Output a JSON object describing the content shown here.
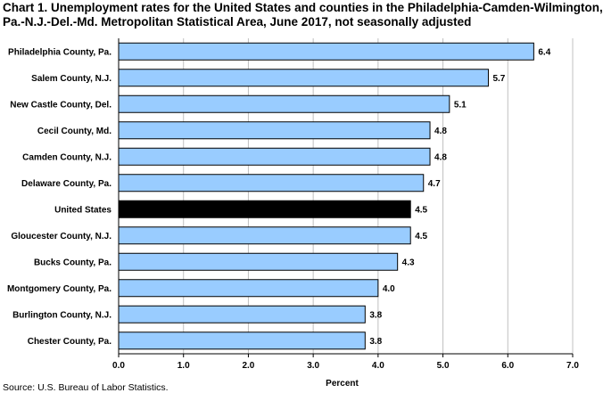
{
  "title_line1": "Chart 1. Unemployment rates for the United States and counties in the Philadelphia-Camden-Wilmington,",
  "title_line2": "Pa.-N.J.-Del.-Md. Metropolitan Statistical Area, June 2017, not seasonally adjusted",
  "source": "Source: U.S. Bureau of Labor Statistics.",
  "colors": {
    "bar": "#99ccff",
    "highlight": "#000000",
    "grid": "#c0c0c0"
  },
  "chart_data": {
    "type": "bar",
    "orientation": "horizontal",
    "title": "Chart 1. Unemployment rates for the United States and counties in the Philadelphia-Camden-Wilmington, Pa.-N.J.-Del.-Md. Metropolitan Statistical Area, June 2017, not seasonally adjusted",
    "xlabel": "Percent",
    "ylabel": "",
    "xlim": [
      0,
      7
    ],
    "ticks": [
      "0.0",
      "1.0",
      "2.0",
      "3.0",
      "4.0",
      "5.0",
      "6.0",
      "7.0"
    ],
    "grid": "vertical",
    "categories": [
      "Philadelphia County, Pa.",
      "Salem County, N.J.",
      "New Castle County, Del.",
      "Cecil County, Md.",
      "Camden County, N.J.",
      "Delaware County, Pa.",
      "United States",
      "Gloucester County, N.J.",
      "Bucks County, Pa.",
      "Montgomery County, Pa.",
      "Burlington County, N.J.",
      "Chester County, Pa."
    ],
    "values": [
      6.4,
      5.7,
      5.1,
      4.8,
      4.8,
      4.7,
      4.5,
      4.5,
      4.3,
      4.0,
      3.8,
      3.8
    ],
    "value_labels": [
      "6.4",
      "5.7",
      "5.1",
      "4.8",
      "4.8",
      "4.7",
      "4.5",
      "4.5",
      "4.3",
      "4.0",
      "3.8",
      "3.8"
    ],
    "highlight": "United States"
  }
}
